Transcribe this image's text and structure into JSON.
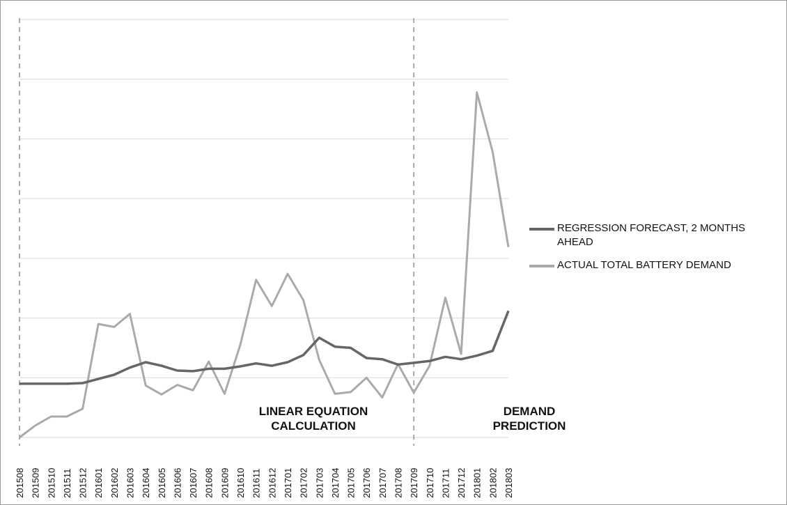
{
  "chart_data": {
    "type": "line",
    "title": "",
    "xlabel": "",
    "ylabel": "",
    "categories": [
      "201508",
      "201509",
      "201510",
      "201511",
      "201512",
      "201601",
      "201602",
      "201603",
      "201604",
      "201605",
      "201606",
      "201607",
      "201608",
      "201609",
      "201610",
      "201611",
      "201612",
      "201701",
      "201702",
      "201703",
      "201704",
      "201705",
      "201706",
      "201707",
      "201708",
      "201709",
      "201710",
      "201711",
      "201712",
      "201801",
      "201802",
      "201803"
    ],
    "ylim": [
      0,
      7
    ],
    "yticks": [
      0,
      1,
      2,
      3,
      4,
      5,
      6,
      7
    ],
    "grid": true,
    "legend_position": "right",
    "series": [
      {
        "name": "REGRESSION FORECAST, 2 MONTHS AHEAD",
        "color": "#666666",
        "values": [
          0.9,
          0.9,
          0.9,
          0.9,
          0.91,
          0.98,
          1.05,
          1.17,
          1.26,
          1.2,
          1.12,
          1.11,
          1.15,
          1.15,
          1.19,
          1.24,
          1.2,
          1.26,
          1.38,
          1.67,
          1.52,
          1.5,
          1.33,
          1.31,
          1.22,
          1.25,
          1.28,
          1.35,
          1.31,
          1.37,
          1.45,
          2.12
        ]
      },
      {
        "name": "ACTUAL TOTAL BATTERY DEMAND",
        "color": "#aaaaaa",
        "values": [
          0.0,
          0.2,
          0.35,
          0.35,
          0.48,
          1.9,
          1.85,
          2.07,
          0.87,
          0.72,
          0.88,
          0.79,
          1.27,
          0.73,
          1.55,
          2.64,
          2.2,
          2.74,
          2.3,
          1.3,
          0.73,
          0.76,
          1.0,
          0.67,
          1.23,
          0.75,
          1.2,
          2.34,
          1.4,
          5.78,
          4.78,
          3.19
        ]
      }
    ],
    "annotations": [
      "LINEAR EQUATION CALCULATION",
      "DEMAND PREDICTION"
    ],
    "divider_categories": [
      "201508",
      "201709"
    ]
  }
}
